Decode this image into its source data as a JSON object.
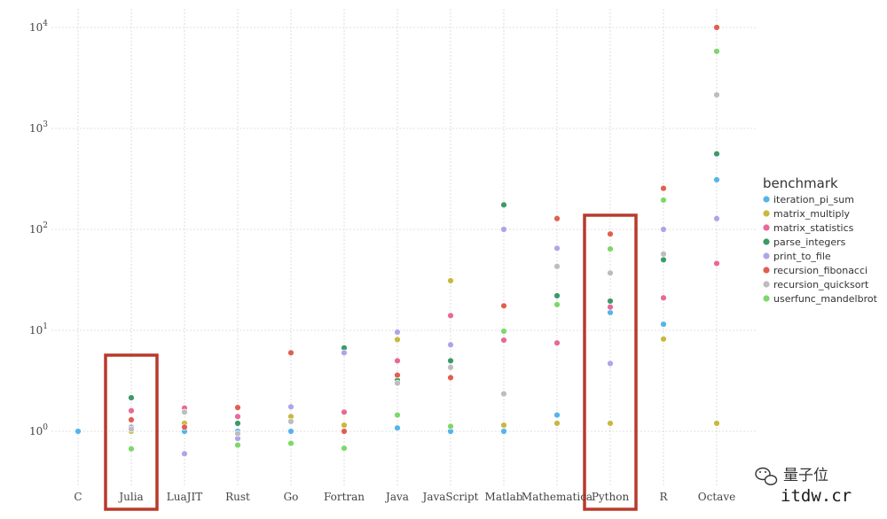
{
  "chart_data": {
    "type": "scatter",
    "title": "",
    "xlabel": "",
    "ylabel": "",
    "yscale": "log",
    "ylim": [
      0.5,
      10000
    ],
    "y_ticks": [
      {
        "value": 1,
        "base": "10",
        "exp": "0"
      },
      {
        "value": 10,
        "base": "10",
        "exp": "1"
      },
      {
        "value": 100,
        "base": "10",
        "exp": "2"
      },
      {
        "value": 1000,
        "base": "10",
        "exp": "3"
      },
      {
        "value": 10000,
        "base": "10",
        "exp": "4"
      }
    ],
    "grid": true,
    "legend": {
      "title": "benchmark",
      "position": "right"
    },
    "categories": [
      "C",
      "Julia",
      "LuaJIT",
      "Rust",
      "Go",
      "Fortran",
      "Java",
      "JavaScript",
      "Matlab",
      "Mathematica",
      "Python",
      "R",
      "Octave"
    ],
    "highlighted_categories": [
      "Julia",
      "Python"
    ],
    "highlight_color": "#b83a2b",
    "series": [
      {
        "name": "iteration_pi_sum",
        "color": "#56b4e9",
        "values": [
          1.0,
          1.0,
          1.0,
          1.0,
          1.0,
          1.0,
          1.08,
          1.0,
          1.0,
          1.45,
          15,
          11.5,
          310
        ]
      },
      {
        "name": "matrix_multiply",
        "color": "#c9b840",
        "values": [
          null,
          1.0,
          1.2,
          1.18,
          1.4,
          1.15,
          8.1,
          31,
          1.15,
          1.2,
          1.2,
          8.2,
          1.2
        ]
      },
      {
        "name": "matrix_statistics",
        "color": "#e8689a",
        "values": [
          null,
          1.6,
          1.7,
          1.4,
          null,
          1.55,
          5.0,
          14,
          8.0,
          7.5,
          17,
          21,
          46
        ]
      },
      {
        "name": "parse_integers",
        "color": "#3a9a6a",
        "values": [
          null,
          2.15,
          null,
          1.2,
          null,
          6.7,
          3.2,
          5.0,
          175,
          22,
          19.5,
          50,
          560
        ]
      },
      {
        "name": "print_to_file",
        "color": "#b0a4e8",
        "values": [
          null,
          1.1,
          0.6,
          0.85,
          1.75,
          6.0,
          9.6,
          7.2,
          100,
          65,
          4.7,
          100,
          128
        ]
      },
      {
        "name": "recursion_fibonacci",
        "color": "#e06050",
        "values": [
          null,
          1.3,
          1.1,
          1.72,
          6.0,
          1.0,
          3.6,
          3.4,
          17.5,
          128,
          90,
          255,
          10000
        ]
      },
      {
        "name": "recursion_quicksort",
        "color": "#bdbdbd",
        "values": [
          null,
          1.05,
          1.55,
          0.95,
          1.25,
          null,
          3.0,
          4.3,
          2.35,
          43,
          37,
          57,
          2150
        ]
      },
      {
        "name": "userfunc_mandelbrot",
        "color": "#7dd86a",
        "values": [
          null,
          0.67,
          null,
          0.73,
          0.76,
          0.68,
          1.45,
          1.12,
          9.8,
          18,
          64,
          195,
          5800
        ]
      }
    ]
  },
  "watermark": {
    "name": "量子位",
    "domain": "itdw.cr"
  }
}
